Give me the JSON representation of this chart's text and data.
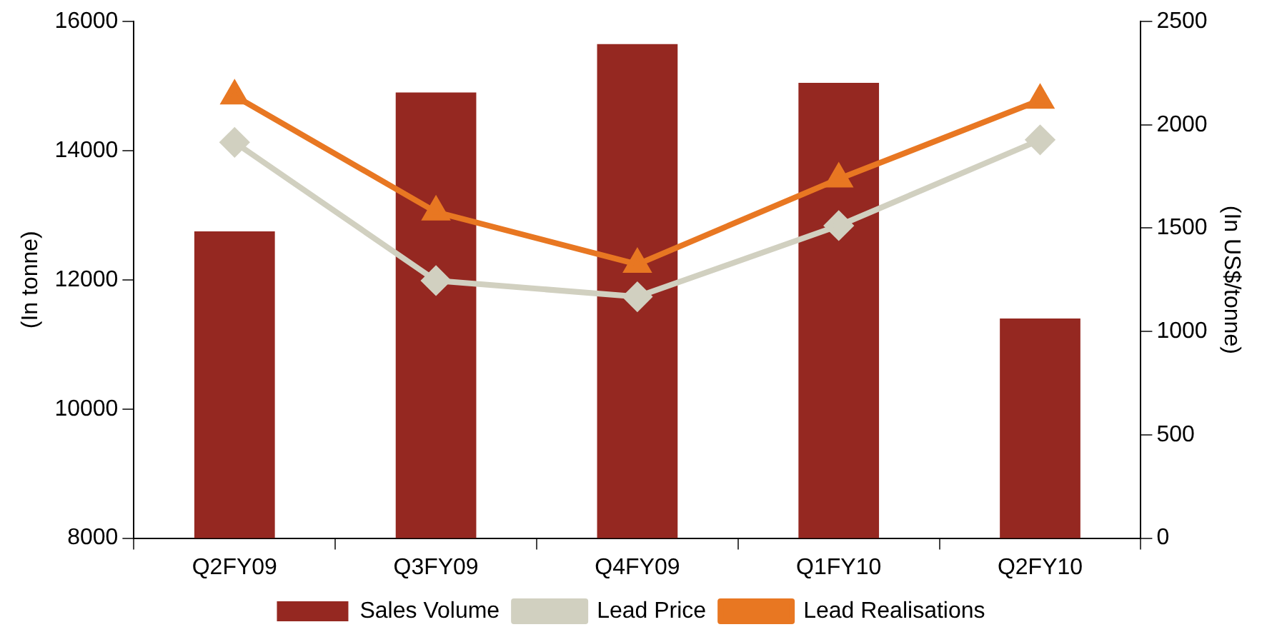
{
  "chart_data": {
    "type": "bar",
    "ylabel": "(In tonne)",
    "y2label": "(In US$/tonne)",
    "categories": [
      "Q2FY09",
      "Q3FY09",
      "Q4FY09",
      "Q1FY10",
      "Q2FY10"
    ],
    "series": [
      {
        "name": "Sales Volume",
        "color": "#952821",
        "values": [
          12750,
          14900,
          15650,
          15050,
          11400
        ]
      },
      {
        "name": "Lead Price",
        "type": "line",
        "axis": "y2",
        "color": "#d1d0c0",
        "marker": "diamond",
        "values": [
          1915,
          1246,
          1168,
          1512,
          1927
        ]
      },
      {
        "name": "Lead Realisations",
        "type": "line",
        "axis": "y2",
        "color": "#e87722",
        "marker": "triangle",
        "values": [
          2140,
          1578,
          1325,
          1738,
          2119
        ]
      }
    ],
    "ylim": [
      8000,
      16000
    ],
    "yticks": [
      8000,
      10000,
      12000,
      14000,
      16000
    ],
    "y2lim": [
      0,
      2500
    ],
    "y2ticks": [
      0,
      500,
      1000,
      1500,
      2000,
      2500
    ],
    "grid": false,
    "legend": "bottom"
  }
}
